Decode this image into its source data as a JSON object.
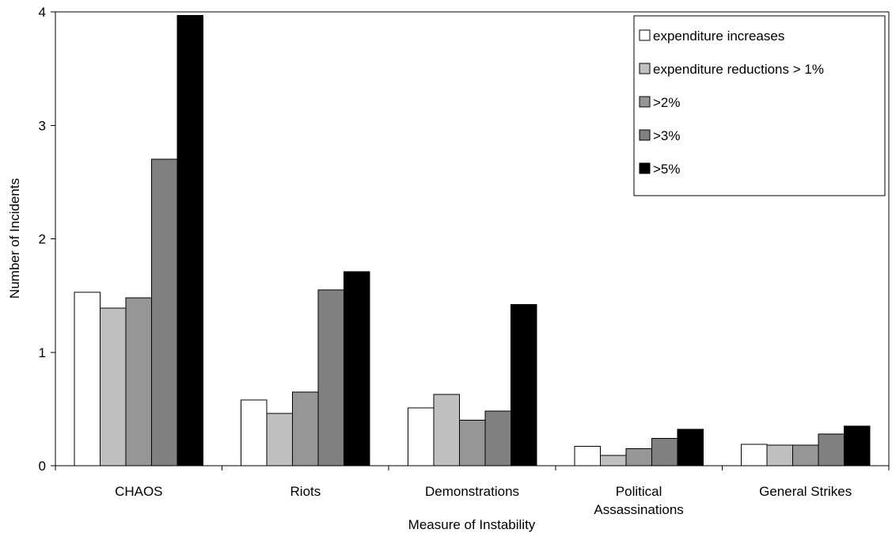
{
  "chart_data": {
    "type": "bar",
    "xlabel": "Measure of Instability",
    "ylabel": "Number of Incidents",
    "ylim": [
      0,
      4
    ],
    "yticks": [
      0,
      1,
      2,
      3,
      4
    ],
    "grid": false,
    "legend_position": "top-right",
    "categories": [
      [
        "CHAOS"
      ],
      [
        "Riots"
      ],
      [
        "Demonstrations"
      ],
      [
        "Political",
        "Assassinations"
      ],
      [
        "General Strikes"
      ]
    ],
    "series": [
      {
        "name": "expenditure increases",
        "color": "#ffffff",
        "values": [
          1.53,
          0.58,
          0.51,
          0.17,
          0.19
        ]
      },
      {
        "name": "expenditure reductions > 1%",
        "color": "#c0c0c0",
        "values": [
          1.39,
          0.46,
          0.63,
          0.09,
          0.18
        ]
      },
      {
        "name": ">2%",
        "color": "#969696",
        "values": [
          1.48,
          0.65,
          0.4,
          0.15,
          0.18
        ]
      },
      {
        "name": ">3%",
        "color": "#808080",
        "values": [
          2.7,
          1.55,
          0.48,
          0.24,
          0.28
        ]
      },
      {
        "name": ">5%",
        "color": "#000000",
        "values": [
          3.97,
          1.71,
          1.42,
          0.32,
          0.35
        ]
      }
    ]
  }
}
